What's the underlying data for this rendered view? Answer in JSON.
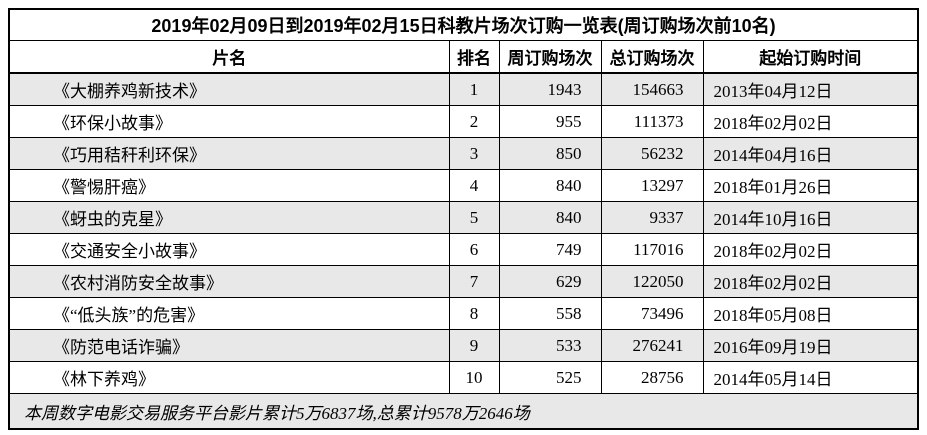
{
  "table": {
    "title": "2019年02月09日到2019年02月15日科教片场次订购一览表(周订购场次前10名)",
    "columns": {
      "name": "片名",
      "rank": "排名",
      "weekly": "周订购场次",
      "total": "总订购场次",
      "start": "起始订购时间"
    },
    "rows": [
      {
        "name": "《大棚养鸡新技术》",
        "rank": "1",
        "weekly": "1943",
        "total": "154663",
        "start": "2013年04月12日"
      },
      {
        "name": "《环保小故事》",
        "rank": "2",
        "weekly": "955",
        "total": "111373",
        "start": "2018年02月02日"
      },
      {
        "name": "《巧用秸秆利环保》",
        "rank": "3",
        "weekly": "850",
        "total": "56232",
        "start": "2014年04月16日"
      },
      {
        "name": "《警惕肝癌》",
        "rank": "4",
        "weekly": "840",
        "total": "13297",
        "start": "2018年01月26日"
      },
      {
        "name": "《蚜虫的克星》",
        "rank": "5",
        "weekly": "840",
        "total": "9337",
        "start": "2014年10月16日"
      },
      {
        "name": "《交通安全小故事》",
        "rank": "6",
        "weekly": "749",
        "total": "117016",
        "start": "2018年02月02日"
      },
      {
        "name": "《农村消防安全故事》",
        "rank": "7",
        "weekly": "629",
        "total": "122050",
        "start": "2018年02月02日"
      },
      {
        "name": "《“低头族”的危害》",
        "rank": "8",
        "weekly": "558",
        "total": "73496",
        "start": "2018年05月08日"
      },
      {
        "name": "《防范电话诈骗》",
        "rank": "9",
        "weekly": "533",
        "total": "276241",
        "start": "2016年09月19日"
      },
      {
        "name": "《林下养鸡》",
        "rank": "10",
        "weekly": "525",
        "total": "28756",
        "start": "2014年05月14日"
      }
    ],
    "footer": "本周数字电影交易服务平台影片累计5万6837场,总累计9578万2646场"
  },
  "colors": {
    "row_alt_background": "#e8e8e8",
    "row_background": "#ffffff",
    "border": "#000000",
    "text": "#000000"
  }
}
